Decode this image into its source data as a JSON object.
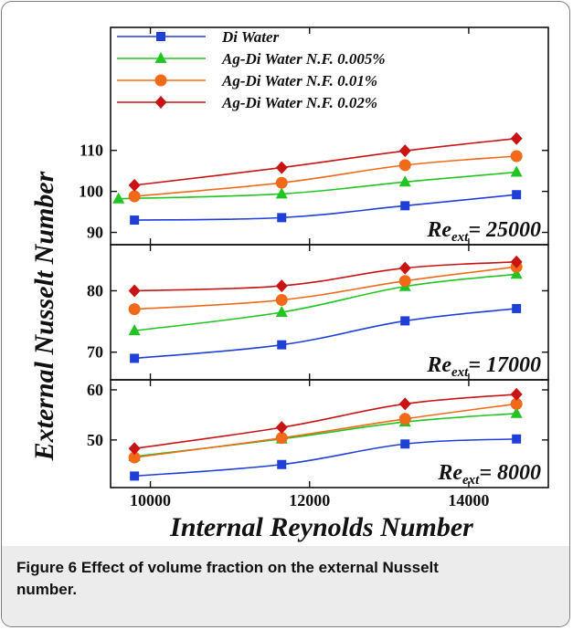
{
  "figure": {
    "caption_label": "Figure 6",
    "caption_text": " Effect of volume fraction on the external Nusselt number."
  },
  "chart_data": {
    "type": "line",
    "xlabel": "Internal Reynolds Number",
    "ylabel": "External Nusselt Number",
    "x": [
      9800,
      11650,
      13200,
      14600
    ],
    "xlim": [
      9500,
      15000
    ],
    "xticks": [
      10000,
      12000,
      14000
    ],
    "xtick_labels": [
      "10000",
      "12000",
      "14000"
    ],
    "legend": [
      {
        "label": "Di Water",
        "color": "#1f3fd6",
        "marker": "square"
      },
      {
        "label": "Ag-Di Water N.F. 0.005%",
        "color": "#22c422",
        "marker": "triangle"
      },
      {
        "label": "Ag-Di Water N.F. 0.01%",
        "color": "#f06a1a",
        "marker": "circle"
      },
      {
        "label": "Ag-Di Water N.F. 0.02%",
        "color": "#c81414",
        "marker": "diamond"
      }
    ],
    "panels": [
      {
        "re_label": "Re",
        "re_sub": "ext",
        "re_value": "= 25000",
        "ylim": [
          87,
          140
        ],
        "yticks": [
          90,
          100,
          110
        ],
        "ytick_labels": [
          "90",
          "100",
          "110"
        ],
        "series": [
          {
            "name": "Di Water",
            "values": [
              93,
              93.6,
              96.5,
              99.2
            ]
          },
          {
            "name": "Ag-Di Water N.F. 0.005%",
            "x": [
              9600,
              11650,
              13200,
              14600
            ],
            "values": [
              98.2,
              99.4,
              102.3,
              104.7
            ]
          },
          {
            "name": "Ag-Di Water N.F. 0.01%",
            "values": [
              98.8,
              102.1,
              106.4,
              108.6
            ]
          },
          {
            "name": "Ag-Di Water N.F. 0.02%",
            "values": [
              101.5,
              105.8,
              109.9,
              112.9
            ]
          }
        ]
      },
      {
        "re_label": "Re",
        "re_sub": "ext",
        "re_value": "= 17000",
        "ylim": [
          65.5,
          87.5
        ],
        "yticks": [
          70,
          80
        ],
        "ytick_labels": [
          "70",
          "80"
        ],
        "series": [
          {
            "name": "Di Water",
            "values": [
              69,
              71.2,
              75.1,
              77.1
            ]
          },
          {
            "name": "Ag-Di Water N.F. 0.005%",
            "values": [
              73.5,
              76.5,
              80.7,
              82.7
            ]
          },
          {
            "name": "Ag-Di Water N.F. 0.01%",
            "values": [
              77,
              78.5,
              81.6,
              83.9
            ]
          },
          {
            "name": "Ag-Di Water N.F. 0.02%",
            "values": [
              80,
              80.8,
              83.7,
              84.7
            ]
          }
        ]
      },
      {
        "re_label": "Re",
        "re_sub": "ext",
        "re_value": "= 8000",
        "ylim": [
          40.5,
          62
        ],
        "yticks": [
          50,
          60
        ],
        "ytick_labels": [
          "50",
          "60"
        ],
        "series": [
          {
            "name": "Di Water",
            "values": [
              42.8,
              45.1,
              49.2,
              50.2
            ]
          },
          {
            "name": "Ag-Di Water N.F. 0.005%",
            "values": [
              46.7,
              50.2,
              53.6,
              55.3
            ]
          },
          {
            "name": "Ag-Di Water N.F. 0.01%",
            "values": [
              46.5,
              50.4,
              54.2,
              57.2
            ]
          },
          {
            "name": "Ag-Di Water N.F. 0.02%",
            "values": [
              48.3,
              52.5,
              57.2,
              59.1
            ]
          }
        ]
      }
    ]
  }
}
